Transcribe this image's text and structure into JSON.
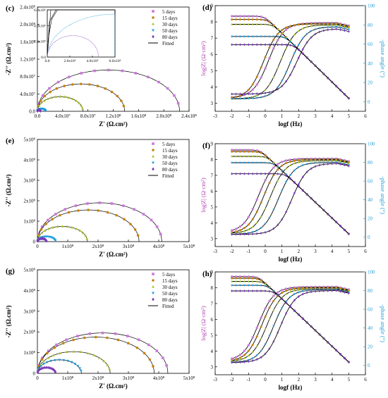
{
  "colors": {
    "d5": "#cc77dd",
    "d15": "#c8820a",
    "d30": "#a8c428",
    "d50": "#1e9de0",
    "d80": "#7a3ab8",
    "fit": "#000000",
    "phaseAxis": "#2a9fd6",
    "modAxis": "#b23fb0"
  },
  "legend_labels": [
    "5 days",
    "15 days",
    "30 days",
    "50 days",
    "80 days",
    "Fitted"
  ],
  "chart_data": [
    {
      "panel": "(c)",
      "type": "scatter",
      "xlabel": "Z' (Ω.cm²)",
      "ylabel": "-Z'' (Ω.cm²)",
      "xlim": [
        0,
        240000000.0
      ],
      "ylim": [
        0,
        240000000.0
      ],
      "xticks": [
        "0.0",
        "4.0x10⁷",
        "8.0x10⁷",
        "1.2x10⁸",
        "1.6x10⁸",
        "2.0x10⁸",
        "2.4x10⁸"
      ],
      "yticks": [
        "0.0",
        "4.0x10⁷",
        "8.0x10⁷",
        "1.2x10⁸",
        "1.6x10⁸",
        "2.0x10⁸",
        "2.4x10⁸"
      ],
      "series": [
        {
          "name": "5 days",
          "R": 225000000.0,
          "H": 95000000.0
        },
        {
          "name": "15 days",
          "R": 138000000.0,
          "H": 63000000.0
        },
        {
          "name": "30 days",
          "R": 72000000.0,
          "H": 34000000.0
        },
        {
          "name": "50 days",
          "R": 13000000.0,
          "H": 6000000.0
        },
        {
          "name": "80 days",
          "R": 5000000.0,
          "H": 3000000.0
        }
      ],
      "inset": {
        "xticks": [
          "0.0",
          "2.0x10⁶",
          "4.0x10⁶",
          "6.0x10⁶"
        ],
        "yticks": [
          "0.0",
          "2.0x10⁶",
          "4.0x10⁶",
          "6.0x10⁶"
        ]
      }
    },
    {
      "panel": "(d)",
      "type": "line",
      "xlabel": "logf (Hz)",
      "ylabel": "log|Z| (Ω·cm²)",
      "y2label": "-phase angle (°)",
      "xlim": [
        -3,
        6
      ],
      "ylim": [
        2.5,
        9
      ],
      "y2lim": [
        -10,
        100
      ],
      "xticks": [
        "-3",
        "-2",
        "-1",
        "0",
        "1",
        "2",
        "3",
        "4",
        "5",
        "6"
      ],
      "yticks": [
        "3",
        "4",
        "5",
        "6",
        "7",
        "8",
        "9"
      ],
      "y2ticks": [
        "0",
        "20",
        "40",
        "60",
        "80",
        "100"
      ],
      "series": [
        {
          "name": "5 days",
          "logR": 8.35,
          "corner": 0.4,
          "phase_low": 4,
          "phase_mid": 0.2,
          "phase_max": 82
        },
        {
          "name": "15 days",
          "logR": 8.15,
          "corner": 0.1,
          "phase_low": 3,
          "phase_mid": -0.1,
          "phase_max": 81
        },
        {
          "name": "30 days",
          "logR": 7.85,
          "corner": -0.3,
          "phase_low": 3,
          "phase_mid": 0.9,
          "phase_max": 80
        },
        {
          "name": "50 days",
          "logR": 7.1,
          "corner": -1.1,
          "phase_low": 3,
          "phase_mid": 1.5,
          "phase_max": 78
        },
        {
          "name": "80 days",
          "logR": 6.6,
          "corner": -1.6,
          "phase_low": 8,
          "phase_mid": 1.9,
          "phase_max": 76
        }
      ]
    },
    {
      "panel": "(e)",
      "type": "scatter",
      "xlabel": "Z' (Ω.cm²)",
      "ylabel": "-Z'' (Ω.cm²)",
      "xlim": [
        0,
        500000000.0
      ],
      "ylim": [
        0,
        500000000.0
      ],
      "xticks": [
        "0",
        "1x10⁸",
        "2x10⁸",
        "3x10⁸",
        "4x10⁸",
        "5x10⁸"
      ],
      "yticks": [
        "0",
        "1x10⁸",
        "2x10⁸",
        "3x10⁸",
        "4x10⁸",
        "5x10⁸"
      ],
      "series": [
        {
          "name": "5 days",
          "R": 410000000.0,
          "H": 190000000.0
        },
        {
          "name": "15 days",
          "R": 335000000.0,
          "H": 155000000.0
        },
        {
          "name": "30 days",
          "R": 165000000.0,
          "H": 75000000.0
        },
        {
          "name": "50 days",
          "R": 60000000.0,
          "H": 25000000.0
        },
        {
          "name": "80 days",
          "R": 30000000.0,
          "H": 15000000.0
        }
      ]
    },
    {
      "panel": "(f)",
      "type": "line",
      "xlabel": "logf (Hz)",
      "ylabel": "log|Z| (Ω·cm²)",
      "y2label": "-phase angle (°)",
      "xlim": [
        -3,
        6
      ],
      "ylim": [
        2.5,
        9
      ],
      "y2lim": [
        -10,
        100
      ],
      "xticks": [
        "-3",
        "-2",
        "-1",
        "0",
        "1",
        "2",
        "3",
        "4",
        "5",
        "6"
      ],
      "yticks": [
        "3",
        "4",
        "5",
        "6",
        "7",
        "8",
        "9"
      ],
      "y2ticks": [
        "0",
        "20",
        "40",
        "60",
        "80",
        "100"
      ],
      "series": [
        {
          "name": "5 days",
          "logR": 8.6,
          "corner": 0.6,
          "phase_low": 5,
          "phase_mid": -0.4,
          "phase_max": 84
        },
        {
          "name": "15 days",
          "logR": 8.5,
          "corner": 0.4,
          "phase_low": 4,
          "phase_mid": -0.1,
          "phase_max": 83
        },
        {
          "name": "30 days",
          "logR": 8.2,
          "corner": 0.1,
          "phase_low": 4,
          "phase_mid": 0.3,
          "phase_max": 82
        },
        {
          "name": "50 days",
          "logR": 7.8,
          "corner": -0.3,
          "phase_low": 3,
          "phase_mid": 0.8,
          "phase_max": 80
        },
        {
          "name": "80 days",
          "logR": 7.1,
          "corner": -1.0,
          "phase_low": 3,
          "phase_mid": 1.6,
          "phase_max": 79
        }
      ]
    },
    {
      "panel": "(g)",
      "type": "scatter",
      "xlabel": "Z' (Ω.cm²)",
      "ylabel": "-Z'' (Ω.cm²)",
      "xlim": [
        0,
        500000000.0
      ],
      "ylim": [
        0,
        500000000.0
      ],
      "xticks": [
        "0",
        "1x10⁸",
        "2x10⁸",
        "3x10⁸",
        "4x10⁸",
        "5x10⁸"
      ],
      "yticks": [
        "0",
        "1x10⁸",
        "2x10⁸",
        "3x10⁸",
        "4x10⁸",
        "5x10⁸"
      ],
      "series": [
        {
          "name": "5 days",
          "R": 430000000.0,
          "H": 195000000.0
        },
        {
          "name": "15 days",
          "R": 385000000.0,
          "H": 175000000.0
        },
        {
          "name": "30 days",
          "R": 240000000.0,
          "H": 105000000.0
        },
        {
          "name": "50 days",
          "R": 145000000.0,
          "H": 65000000.0
        },
        {
          "name": "80 days",
          "R": 60000000.0,
          "H": 28000000.0
        }
      ]
    },
    {
      "panel": "(h)",
      "type": "line",
      "xlabel": "logf (Hz)",
      "ylabel": "log|Z| (Ω·cm²)",
      "y2label": "-phase angle (°)",
      "xlim": [
        -3,
        6
      ],
      "ylim": [
        2.5,
        9
      ],
      "y2lim": [
        -10,
        100
      ],
      "xticks": [
        "-3",
        "-2",
        "-1",
        "0",
        "1",
        "2",
        "3",
        "4",
        "5",
        "6"
      ],
      "yticks": [
        "3",
        "4",
        "5",
        "6",
        "7",
        "8",
        "9"
      ],
      "y2ticks": [
        "0",
        "20",
        "40",
        "60",
        "80",
        "100"
      ],
      "series": [
        {
          "name": "5 days",
          "logR": 8.7,
          "corner": 0.7,
          "phase_low": 5,
          "phase_mid": -0.4,
          "phase_max": 84
        },
        {
          "name": "15 days",
          "logR": 8.6,
          "corner": 0.6,
          "phase_low": 4,
          "phase_mid": -0.2,
          "phase_max": 83
        },
        {
          "name": "30 days",
          "logR": 8.4,
          "corner": 0.4,
          "phase_low": 4,
          "phase_mid": 0.1,
          "phase_max": 82
        },
        {
          "name": "50 days",
          "logR": 8.15,
          "corner": 0.1,
          "phase_low": 3,
          "phase_mid": 0.5,
          "phase_max": 81
        },
        {
          "name": "80 days",
          "logR": 7.8,
          "corner": -0.2,
          "phase_low": 3,
          "phase_mid": 0.9,
          "phase_max": 80
        }
      ]
    }
  ]
}
